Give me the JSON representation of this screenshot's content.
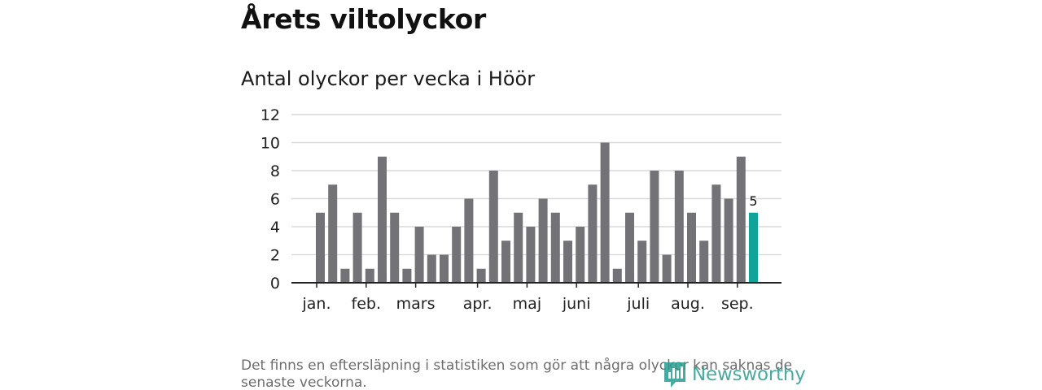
{
  "title": "Årets viltolyckor",
  "subtitle": "Antal olyckor per vecka i Höör",
  "footnote": "Det finns en eftersläpning i statistiken som gör att några olyckor kan saknas de senaste veckorna.",
  "brand": {
    "name": "Newsworthy",
    "icon": "newsworthy-logo-icon",
    "color": "#2a9d8f"
  },
  "colors": {
    "bar": "#737277",
    "highlight": "#0fa39a",
    "grid": "#d9d9d9",
    "axis": "#222222"
  },
  "chart_data": {
    "type": "bar",
    "ylim": [
      0,
      12
    ],
    "yticks": [
      0,
      2,
      4,
      6,
      8,
      10,
      12
    ],
    "grid": true,
    "x_month_labels": [
      {
        "label": "jan.",
        "at_index": 0
      },
      {
        "label": "feb.",
        "at_index": 4
      },
      {
        "label": "mars",
        "at_index": 8
      },
      {
        "label": "apr.",
        "at_index": 13
      },
      {
        "label": "maj",
        "at_index": 17
      },
      {
        "label": "juni",
        "at_index": 21
      },
      {
        "label": "juli",
        "at_index": 26
      },
      {
        "label": "aug.",
        "at_index": 30
      },
      {
        "label": "sep.",
        "at_index": 34
      }
    ],
    "values": [
      5,
      7,
      1,
      5,
      1,
      9,
      5,
      1,
      4,
      2,
      2,
      4,
      6,
      1,
      8,
      3,
      5,
      4,
      6,
      5,
      3,
      4,
      7,
      10,
      1,
      5,
      3,
      8,
      2,
      8,
      5,
      3,
      7,
      6,
      9,
      5
    ],
    "highlight_index": 35,
    "highlight_label": "5"
  }
}
